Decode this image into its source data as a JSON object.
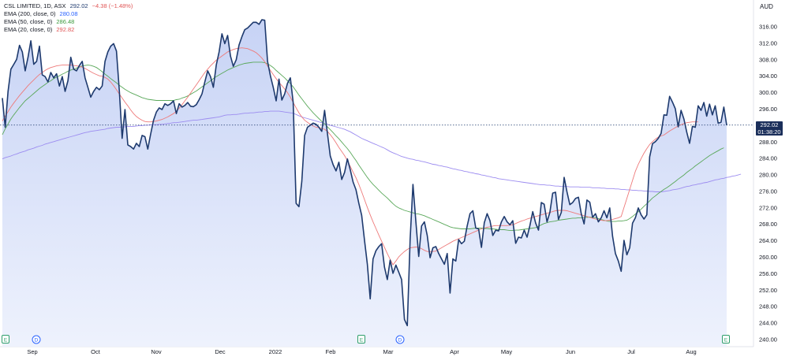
{
  "legend": {
    "symbol_line": "CSL LIMITED, 1D, ASX",
    "last_price": "292.02",
    "change": "−4.38 (−1.48%)",
    "ema200_label": "EMA (200, close, 0)",
    "ema200_value": "280.08",
    "ema50_label": "EMA (50, close, 0)",
    "ema50_value": "286.48",
    "ema20_label": "EMA (20, close, 0)",
    "ema20_value": "292.82"
  },
  "price_axis": {
    "currency": "AUD",
    "ticks": [
      "316.00",
      "312.00",
      "308.00",
      "304.00",
      "300.00",
      "296.00",
      "292.00",
      "288.00",
      "284.00",
      "280.00",
      "276.00",
      "272.00",
      "268.00",
      "264.00",
      "260.00",
      "256.00",
      "252.00",
      "248.00",
      "244.00",
      "240.00"
    ]
  },
  "current_price": {
    "value": "292.02",
    "countdown": "01:38:20"
  },
  "time_axis": {
    "labels": [
      "Sep",
      "Oct",
      "Nov",
      "Dec",
      "2022",
      "Feb",
      "Mar",
      "Apr",
      "May",
      "Jun",
      "Jul",
      "Aug"
    ]
  },
  "markers": [
    {
      "glyph": "E",
      "month": "Aug-2021"
    },
    {
      "glyph": "D",
      "month": "Sep-2021"
    },
    {
      "glyph": "E",
      "month": "Feb-2022"
    },
    {
      "glyph": "D",
      "month": "Mar-2022"
    },
    {
      "glyph": "E",
      "month": "Aug-2022"
    }
  ],
  "colors": {
    "price_line": "#1e3a6e",
    "area_top": "#c7d3f5",
    "area_bottom": "#eef2fd",
    "ema200": "#9c8cf0",
    "ema50": "#5aa85a",
    "ema20": "#ee7a7a",
    "price_tag_bg": "#1a2e5a",
    "ema20_text": "#e05555",
    "ema50_text": "#3d9a3d",
    "ema200_text": "#2962ff"
  },
  "chart_data": {
    "type": "area",
    "title": "CSL LIMITED, 1D, ASX",
    "x_start": "2021-08-20",
    "x_interval": "trading day",
    "ylim": [
      240,
      318
    ],
    "y_unit": "AUD",
    "series": [
      {
        "name": "CSL LIMITED",
        "values": [
          298.6,
          291.5,
          300.2,
          305.6,
          306.8,
          308.0,
          311.4,
          309.8,
          305.2,
          308.5,
          312.5,
          306.8,
          307.5,
          311.2,
          304.2,
          303.8,
          302.5,
          304.8,
          303.5,
          304.5,
          301.5,
          303.8,
          300.2,
          302.8,
          308.5,
          305.6,
          305.2,
          306.5,
          307.5,
          303.5,
          301.2,
          298.8,
          300.2,
          301.2,
          300.6,
          301.5,
          307.5,
          309.8,
          311.2,
          311.8,
          310.0,
          300.5,
          288.8,
          295.8,
          287.2,
          286.8,
          286.2,
          287.6,
          286.8,
          289.5,
          289.2,
          286.2,
          289.8,
          293.2,
          295.2,
          296.2,
          295.8,
          297.2,
          296.8,
          297.2,
          297.9,
          294.8,
          297.2,
          296.4,
          296.8,
          297.5,
          296.6,
          296.5,
          297.0,
          298.2,
          299.6,
          302.5,
          305.2,
          303.8,
          301.2,
          306.6,
          309.8,
          314.2,
          311.8,
          313.8,
          308.8,
          306.3,
          307.9,
          311.5,
          313.5,
          315.2,
          315.6,
          316.3,
          317.0,
          317.0,
          316.5,
          317.6,
          317.5,
          307.5,
          304.0,
          301.2,
          297.9,
          303.2,
          298.1,
          299.6,
          302.2,
          303.5,
          297.5,
          273.0,
          272.2,
          278.3,
          289.5,
          291.5,
          292.0,
          292.5,
          292.2,
          291.5,
          290.5,
          295.6,
          290.0,
          284.5,
          282.4,
          280.9,
          283.0,
          278.8,
          280.5,
          283.8,
          281.2,
          278.2,
          276.3,
          273.0,
          270.1,
          264.0,
          258.2,
          249.8,
          259.5,
          261.5,
          262.5,
          263.2,
          257.5,
          254.5,
          259.2,
          256.0,
          258.0,
          256.3,
          254.5,
          244.8,
          243.3,
          264.2,
          277.6,
          268.5,
          260.1,
          267.5,
          268.5,
          265.2,
          259.8,
          262.2,
          262.5,
          260.8,
          259.5,
          258.2,
          260.8,
          251.2,
          259.5,
          259.0,
          264.2,
          263.2,
          263.8,
          267.5,
          270.5,
          271.2,
          267.0,
          266.8,
          262.3,
          268.3,
          270.5,
          268.8,
          265.2,
          266.5,
          266.3,
          268.5,
          269.8,
          268.5,
          267.8,
          268.8,
          263.3,
          264.8,
          264.6,
          266.5,
          264.8,
          267.6,
          271.0,
          268.2,
          266.5,
          273.2,
          272.8,
          268.5,
          270.8,
          275.5,
          275.7,
          269.1,
          270.8,
          279.3,
          275.8,
          272.7,
          273.2,
          274.2,
          274.5,
          270.5,
          268.0,
          273.8,
          273.3,
          269.6,
          270.5,
          268.5,
          269.5,
          271.2,
          269.5,
          271.9,
          265.0,
          260.8,
          259.0,
          256.5,
          264.0,
          260.5,
          262.2,
          268.2,
          269.5,
          271.9,
          270.2,
          269.2,
          270.2,
          284.3,
          287.5,
          288.0,
          288.8,
          290.0,
          294.5,
          294.4,
          299.0,
          297.6,
          296.0,
          291.6,
          295.6,
          293.5,
          290.3,
          287.6,
          291.7,
          291.5,
          296.7,
          295.6,
          297.5,
          294.2,
          297.1,
          294.5,
          296.7,
          292.5,
          292.7,
          296.4,
          292.0
        ]
      },
      {
        "name": "EMA (200, close, 0)",
        "values": [
          283.8,
          284.1,
          284.3,
          284.5,
          284.8,
          285.0,
          285.3,
          285.5,
          285.7,
          286.0,
          286.2,
          286.4,
          286.7,
          286.9,
          287.1,
          287.4,
          287.6,
          287.8,
          288.0,
          288.2,
          288.4,
          288.6,
          288.8,
          289.0,
          289.2,
          289.4,
          289.6,
          289.8,
          290.0,
          290.2,
          290.3,
          290.5,
          290.6,
          290.7,
          290.8,
          290.9,
          291.0,
          291.2,
          291.3,
          291.4,
          291.5,
          291.5,
          291.6,
          291.6,
          291.7,
          291.7,
          291.7,
          291.8,
          291.9,
          291.9,
          292.0,
          292.0,
          292.1,
          292.1,
          292.1,
          292.2,
          292.2,
          292.3,
          292.4,
          292.5,
          292.6,
          292.6,
          292.7,
          292.8,
          292.9,
          293.0,
          293.1,
          293.2,
          293.2,
          293.3,
          293.4,
          293.5,
          293.6,
          293.7,
          293.8,
          293.9,
          294.0,
          294.2,
          294.4,
          294.5,
          294.5,
          294.6,
          294.6,
          294.7,
          294.8,
          294.9,
          294.9,
          295.0,
          295.0,
          295.1,
          295.2,
          295.2,
          295.3,
          295.3,
          295.4,
          295.4,
          295.4,
          295.4,
          295.3,
          295.2,
          295.1,
          295.0,
          294.9,
          294.6,
          294.3,
          294.0,
          293.8,
          293.6,
          293.4,
          293.2,
          293.0,
          292.8,
          292.6,
          292.4,
          292.2,
          292.0,
          291.8,
          291.6,
          291.4,
          291.2,
          291.0,
          290.7,
          290.4,
          290.0,
          289.6,
          289.2,
          288.8,
          288.5,
          288.2,
          287.9,
          287.6,
          287.3,
          287.0,
          286.7,
          286.4,
          286.0,
          285.6,
          285.3,
          285.0,
          284.7,
          284.4,
          284.2,
          284.0,
          283.8,
          283.7,
          283.5,
          283.4,
          283.2,
          283.1,
          282.9,
          282.7,
          282.5,
          282.4,
          282.2,
          282.1,
          281.9,
          281.8,
          281.6,
          281.4,
          281.3,
          281.1,
          281.0,
          280.8,
          280.7,
          280.5,
          280.4,
          280.2,
          280.1,
          279.9,
          279.8,
          279.6,
          279.5,
          279.3,
          279.2,
          279.0,
          278.9,
          278.8,
          278.7,
          278.6,
          278.5,
          278.4,
          278.3,
          278.2,
          278.1,
          278.0,
          277.9,
          277.8,
          277.7,
          277.6,
          277.5,
          277.5,
          277.4,
          277.4,
          277.3,
          277.2,
          277.2,
          277.1,
          277.1,
          277.1,
          277.0,
          277.0,
          277.0,
          277.0,
          276.9,
          276.9,
          276.9,
          276.9,
          276.8,
          276.8,
          276.8,
          276.7,
          276.7,
          276.6,
          276.6,
          276.6,
          276.5,
          276.5,
          276.4,
          276.4,
          276.3,
          276.3,
          276.2,
          276.2,
          276.1,
          276.1,
          276.0,
          276.0,
          275.9,
          275.9,
          275.8,
          275.8,
          275.8,
          275.9,
          276.0,
          276.1,
          276.3,
          276.4,
          276.5,
          276.7,
          276.9,
          277.1,
          277.2,
          277.4,
          277.5,
          277.7,
          277.8,
          278.0,
          278.1,
          278.3,
          278.5,
          278.7,
          278.8,
          279.0,
          279.1,
          279.3,
          279.4,
          279.6,
          279.7,
          279.9,
          280.1
        ]
      },
      {
        "name": "EMA (50, close, 0)",
        "values": [
          289.7,
          291.1,
          292.3,
          293.5,
          294.5,
          295.4,
          296.3,
          297.1,
          297.9,
          298.5,
          299.1,
          299.7,
          300.3,
          300.9,
          301.4,
          301.9,
          302.4,
          302.8,
          303.3,
          303.7,
          304.0,
          304.4,
          304.7,
          305.1,
          305.4,
          305.6,
          305.9,
          306.1,
          306.4,
          306.5,
          306.6,
          306.5,
          306.3,
          306.0,
          305.5,
          305.0,
          304.4,
          303.9,
          303.3,
          302.8,
          302.3,
          301.7,
          301.2,
          300.7,
          300.3,
          299.9,
          299.6,
          299.3,
          299.0,
          298.7,
          298.5,
          298.3,
          298.2,
          298.1,
          298.0,
          298.0,
          298.0,
          298.0,
          298.0,
          298.0,
          298.0,
          298.2,
          298.3,
          298.6,
          298.8,
          299.1,
          299.5,
          299.9,
          300.3,
          300.8,
          301.3,
          301.8,
          302.3,
          302.8,
          303.3,
          303.8,
          304.2,
          304.6,
          305.0,
          305.4,
          305.7,
          306.0,
          306.3,
          306.6,
          306.8,
          307.0,
          307.1,
          307.2,
          307.3,
          307.3,
          307.3,
          307.3,
          307.2,
          306.9,
          306.5,
          306.0,
          305.3,
          304.7,
          304.1,
          303.5,
          302.8,
          302.1,
          301.3,
          300.3,
          299.3,
          298.4,
          297.5,
          296.6,
          295.8,
          295.0,
          294.3,
          293.6,
          292.9,
          292.3,
          291.6,
          290.9,
          290.2,
          289.4,
          288.7,
          287.9,
          287.1,
          286.3,
          285.4,
          284.4,
          283.4,
          282.3,
          281.3,
          280.3,
          279.3,
          278.4,
          277.6,
          276.9,
          276.2,
          275.5,
          274.9,
          274.3,
          273.6,
          272.9,
          272.3,
          271.9,
          271.6,
          271.3,
          271.1,
          270.9,
          270.7,
          270.5,
          270.4,
          270.2,
          270.0,
          269.7,
          269.4,
          269.1,
          268.8,
          268.5,
          268.2,
          267.9,
          267.6,
          267.3,
          267.1,
          267.0,
          266.9,
          266.8,
          266.8,
          266.8,
          266.8,
          266.9,
          267.0,
          267.0,
          267.0,
          266.9,
          266.9,
          266.8,
          266.8,
          266.7,
          266.6,
          266.6,
          266.6,
          266.5,
          266.4,
          266.4,
          266.5,
          266.5,
          266.6,
          266.7,
          266.8,
          266.9,
          267.0,
          267.1,
          267.4,
          267.8,
          268.1,
          268.3,
          268.5,
          268.6,
          268.7,
          268.9,
          269.0,
          269.1,
          269.2,
          269.3,
          269.4,
          269.4,
          269.5,
          269.5,
          269.6,
          269.6,
          269.7,
          269.6,
          269.5,
          269.3,
          269.1,
          268.9,
          268.7,
          268.6,
          268.6,
          268.6,
          268.7,
          268.7,
          268.8,
          268.9,
          269.3,
          269.8,
          270.4,
          271.0,
          271.6,
          272.3,
          272.9,
          273.6,
          274.3,
          274.8,
          275.4,
          275.9,
          276.4,
          276.8,
          277.3,
          277.8,
          278.3,
          278.9,
          279.4,
          279.9,
          280.5,
          281.0,
          281.5,
          282.1,
          282.6,
          283.1,
          283.6,
          284.1,
          284.6,
          285.0,
          285.4,
          285.8,
          286.2,
          286.5
        ]
      },
      {
        "name": "EMA (20, close, 0)",
        "values": [
          293.0,
          294.2,
          295.3,
          296.4,
          297.4,
          298.3,
          299.2,
          300.0,
          300.8,
          301.6,
          302.3,
          303.0,
          303.7,
          304.3,
          304.8,
          305.3,
          305.7,
          306.0,
          306.2,
          306.4,
          306.5,
          306.6,
          306.6,
          306.6,
          306.6,
          306.5,
          306.4,
          306.3,
          306.1,
          305.8,
          305.4,
          305.0,
          304.6,
          304.3,
          304.0,
          303.9,
          303.6,
          303.2,
          302.5,
          301.6,
          300.6,
          299.6,
          298.6,
          297.6,
          296.7,
          295.7,
          294.8,
          294.1,
          293.6,
          293.2,
          292.9,
          292.8,
          292.8,
          292.9,
          293.0,
          293.2,
          293.4,
          293.7,
          294.0,
          294.4,
          294.8,
          295.4,
          296.1,
          297.0,
          297.9,
          298.8,
          299.8,
          300.8,
          301.8,
          302.8,
          303.8,
          304.8,
          305.6,
          306.4,
          307.1,
          307.8,
          308.3,
          308.8,
          309.3,
          309.8,
          310.1,
          310.4,
          310.6,
          310.7,
          310.8,
          310.7,
          310.6,
          310.3,
          310.0,
          309.6,
          309.0,
          308.3,
          307.4,
          306.4,
          305.3,
          304.3,
          303.3,
          302.4,
          301.6,
          300.8,
          299.9,
          298.8,
          297.5,
          296.2,
          295.0,
          294.0,
          293.2,
          292.7,
          292.2,
          291.8,
          291.5,
          291.4,
          291.2,
          291.0,
          290.5,
          289.7,
          288.8,
          287.7,
          286.6,
          285.6,
          284.6,
          283.4,
          282.0,
          280.6,
          279.2,
          277.6,
          275.8,
          273.9,
          272.0,
          270.2,
          268.5,
          266.9,
          265.3,
          263.8,
          262.3,
          260.8,
          259.4,
          258.1,
          259.0,
          260.0,
          260.7,
          261.3,
          261.8,
          262.2,
          262.3,
          262.4,
          262.3,
          262.0,
          261.6,
          261.3,
          261.3,
          261.3,
          261.4,
          261.8,
          262.2,
          262.6,
          263.0,
          263.4,
          263.8,
          264.1,
          264.4,
          264.7,
          265.0,
          265.3,
          265.6,
          265.9,
          266.2,
          266.5,
          266.8,
          267.0,
          267.2,
          267.3,
          267.5,
          267.6,
          267.6,
          267.6,
          267.6,
          267.6,
          267.7,
          267.8,
          268.1,
          268.4,
          268.7,
          268.9,
          269.2,
          269.4,
          269.6,
          269.8,
          270.0,
          270.2,
          270.4,
          270.6,
          270.8,
          271.0,
          271.2,
          271.3,
          271.3,
          271.3,
          271.2,
          271.0,
          270.8,
          270.6,
          270.4,
          270.2,
          270.0,
          269.8,
          269.6,
          269.4,
          269.2,
          269.0,
          268.9,
          268.8,
          268.8,
          268.9,
          269.1,
          269.3,
          269.5,
          269.8,
          272.0,
          274.2,
          276.4,
          278.6,
          280.8,
          282.5,
          283.9,
          285.2,
          286.3,
          287.3,
          288.0,
          288.6,
          289.1,
          289.4,
          289.6,
          290.1,
          290.6,
          291.0,
          291.4,
          291.8,
          292.1,
          292.4,
          292.6,
          292.7,
          292.8,
          292.8,
          292.8
        ]
      }
    ]
  }
}
